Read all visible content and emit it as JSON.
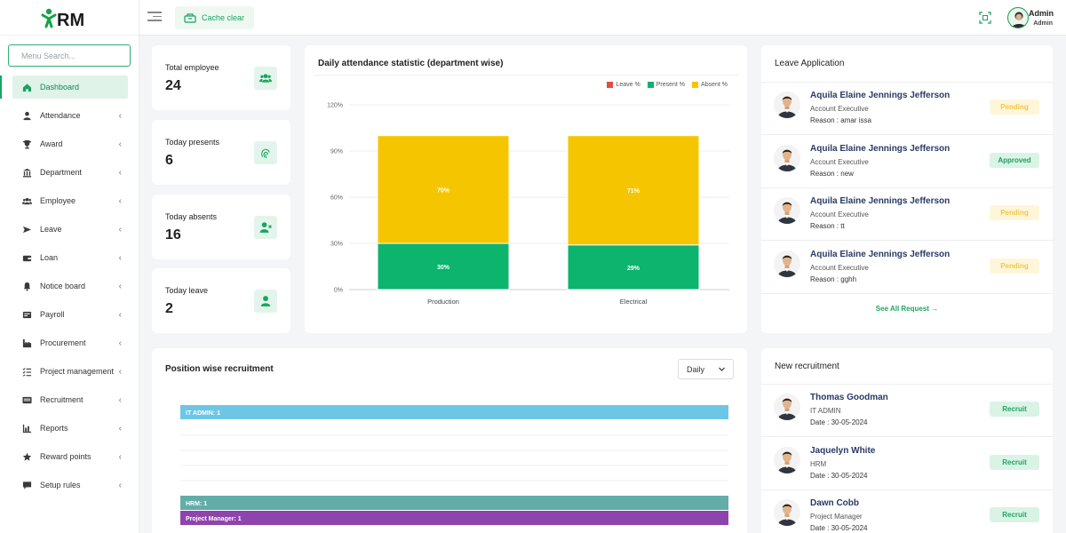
{
  "brand": {
    "logo_text": "RM"
  },
  "sidebar": {
    "search_placeholder": "Menu Search...",
    "items": [
      {
        "label": "Dashboard",
        "icon": "home-icon",
        "active": true
      },
      {
        "label": "Attendance",
        "icon": "person-icon"
      },
      {
        "label": "Award",
        "icon": "trophy-icon"
      },
      {
        "label": "Department",
        "icon": "bank-icon"
      },
      {
        "label": "Employee",
        "icon": "users-icon"
      },
      {
        "label": "Leave",
        "icon": "plane-icon"
      },
      {
        "label": "Loan",
        "icon": "wallet-icon"
      },
      {
        "label": "Notice board",
        "icon": "bell-icon"
      },
      {
        "label": "Payroll",
        "icon": "payroll-icon"
      },
      {
        "label": "Procurement",
        "icon": "factory-icon"
      },
      {
        "label": "Project management",
        "icon": "list-check-icon"
      },
      {
        "label": "Recruitment",
        "icon": "id-card-icon"
      },
      {
        "label": "Reports",
        "icon": "chart-icon"
      },
      {
        "label": "Reward points",
        "icon": "star-icon"
      },
      {
        "label": "Setup rules",
        "icon": "chat-icon"
      }
    ]
  },
  "header": {
    "cache_label": "Cache clear",
    "user_name": "Admin",
    "user_role": "Admin"
  },
  "stats": [
    {
      "label": "Total employee",
      "value": "24",
      "icon": "users-icon"
    },
    {
      "label": "Today presents",
      "value": "6",
      "icon": "fingerprint-icon"
    },
    {
      "label": "Today absents",
      "value": "16",
      "icon": "user-x-icon"
    },
    {
      "label": "Today leave",
      "value": "2",
      "icon": "user-icon"
    }
  ],
  "attendance": {
    "title": "Daily attendance statistic (department wise)",
    "legend": [
      "Leave %",
      "Present %",
      "Absent %"
    ]
  },
  "colors": {
    "accent": "#17a462",
    "leave": "#e74c3c",
    "present": "#0cb46e",
    "absent": "#f5c600",
    "sky": "#6ec6e6",
    "teal": "#63ada8",
    "purple": "#8e44ad"
  },
  "chart_data": [
    {
      "type": "bar",
      "stacked": true,
      "title": "Daily attendance statistic (department wise)",
      "categories": [
        "Production",
        "Electrical"
      ],
      "series": [
        {
          "name": "Leave %",
          "values": [
            0,
            0
          ]
        },
        {
          "name": "Present %",
          "values": [
            30,
            29
          ]
        },
        {
          "name": "Absent %",
          "values": [
            70,
            71
          ]
        }
      ],
      "data_labels": {
        "Present %": [
          "30%",
          "29%"
        ],
        "Absent %": [
          "70%",
          "71%"
        ]
      },
      "ylim": [
        0,
        120
      ],
      "yticks": [
        "0%",
        "30%",
        "60%",
        "90%",
        "120%"
      ],
      "legend": "top-right",
      "grid": true
    },
    {
      "type": "bar",
      "orientation": "horizontal",
      "title": "Position wise recruitment",
      "bars": [
        {
          "label": "IT ADMIN: 1",
          "value": 1,
          "color": "#6ec6e6"
        },
        {
          "label": "HRM: 1",
          "value": 1,
          "color": "#63ada8"
        },
        {
          "label": "Project Manager: 1",
          "value": 1,
          "color": "#8e44ad"
        }
      ],
      "grid": true
    }
  ],
  "leave_app": {
    "title": "Leave Application",
    "items": [
      {
        "name": "Aquila Elaine Jennings Jefferson",
        "role": "Account Executive",
        "extra": "Reason : amar issa",
        "status": "Pending"
      },
      {
        "name": "Aquila Elaine Jennings Jefferson",
        "role": "Account Executive",
        "extra": "Reason : new",
        "status": "Approved"
      },
      {
        "name": "Aquila Elaine Jennings Jefferson",
        "role": "Account Executive",
        "extra": "Reason : tt",
        "status": "Pending"
      },
      {
        "name": "Aquila Elaine Jennings Jefferson",
        "role": "Account Executive",
        "extra": "Reason : gghh",
        "status": "Pending"
      }
    ],
    "see_all": "See All Request →"
  },
  "recruitment": {
    "title": "Position wise recruitment",
    "filter": "Daily"
  },
  "new_recruit": {
    "title": "New recruitment",
    "items": [
      {
        "name": "Thomas Goodman",
        "role": "IT ADMIN",
        "extra": "Date : 30-05-2024",
        "action": "Recruit"
      },
      {
        "name": "Jaquelyn White",
        "role": "HRM",
        "extra": "Date : 30-05-2024",
        "action": "Recruit"
      },
      {
        "name": "Dawn Cobb",
        "role": "Project Manager",
        "extra": "Date : 30-05-2024",
        "action": "Recruit"
      }
    ]
  }
}
